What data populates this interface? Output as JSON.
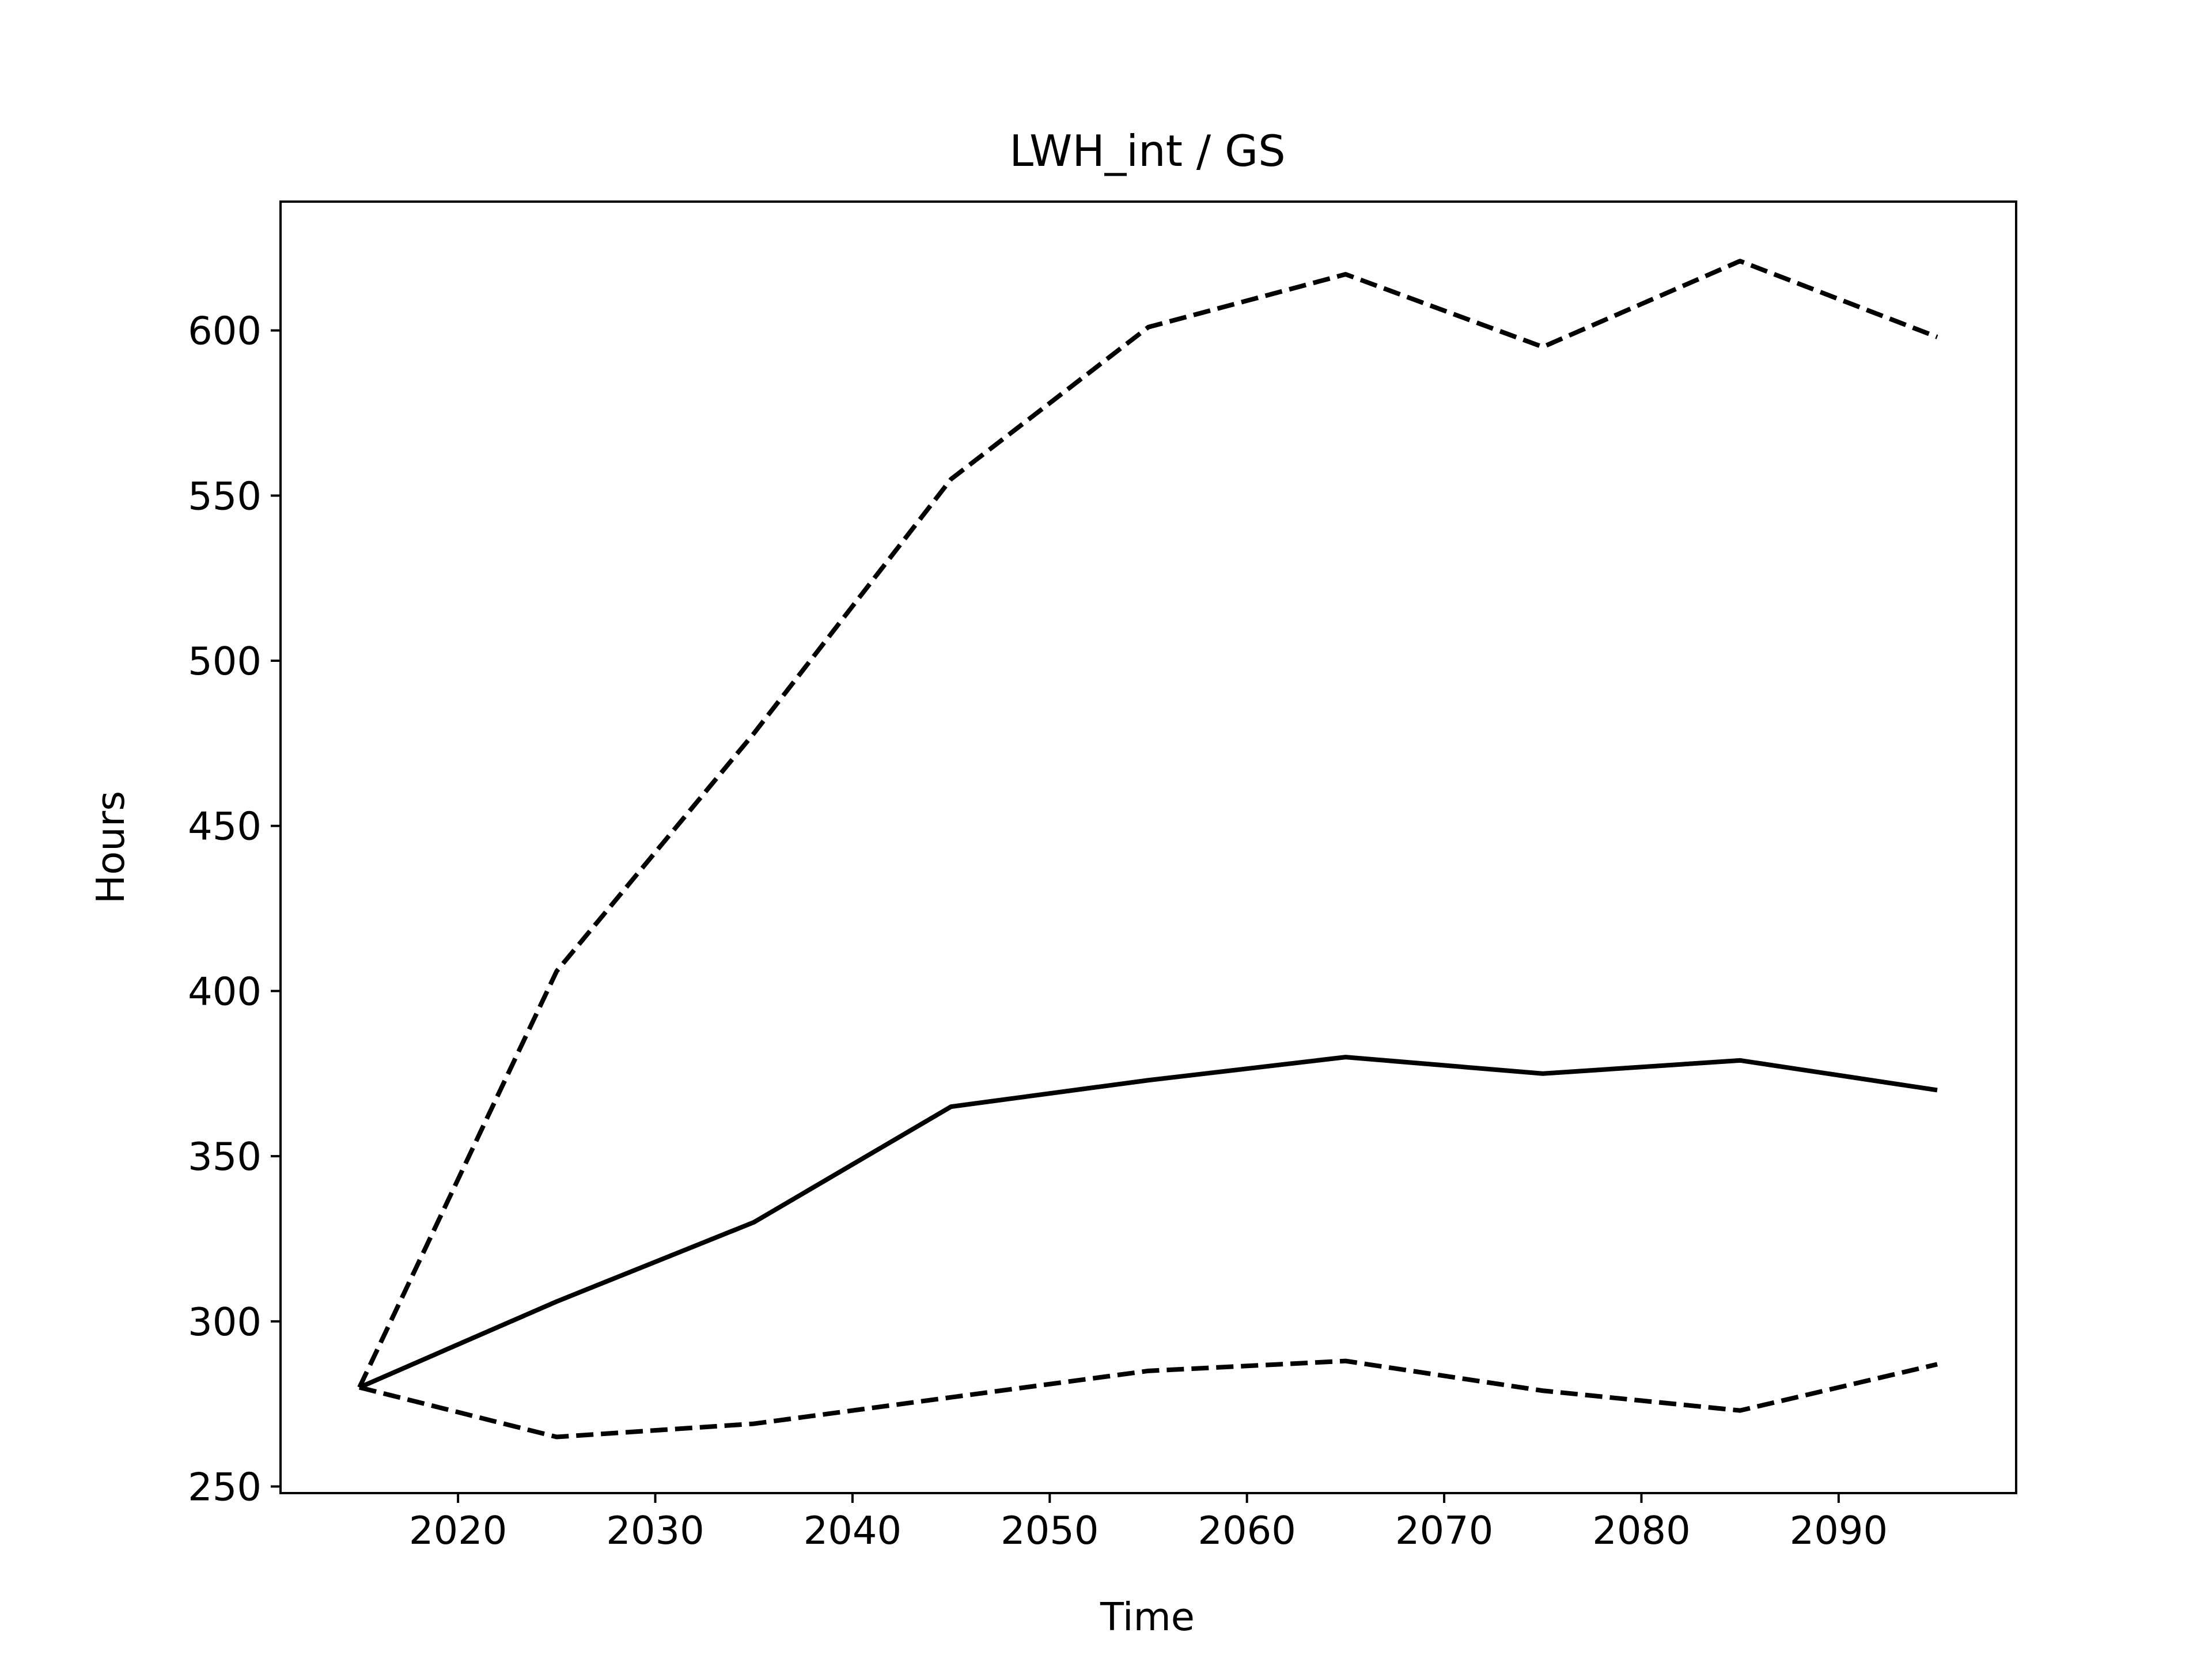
{
  "chart_data": {
    "type": "line",
    "title": "LWH_int / GS",
    "xlabel": "Time",
    "ylabel": "Hours",
    "xlim": [
      2011,
      2099
    ],
    "ylim": [
      248,
      639
    ],
    "xticks": [
      2020,
      2030,
      2040,
      2050,
      2060,
      2070,
      2080,
      2090
    ],
    "yticks": [
      250,
      300,
      350,
      400,
      450,
      500,
      550,
      600
    ],
    "grid": false,
    "x": [
      2015,
      2025,
      2035,
      2045,
      2055,
      2065,
      2075,
      2085,
      2095
    ],
    "series": [
      {
        "style": "solid",
        "color": "#000000",
        "values": [
          280,
          306,
          330,
          365,
          373,
          380,
          375,
          379,
          370
        ]
      },
      {
        "style": "dashed",
        "color": "#000000",
        "values": [
          280,
          406,
          478,
          555,
          601,
          617,
          595,
          621,
          598
        ]
      },
      {
        "style": "dashed",
        "color": "#000000",
        "values": [
          280,
          265,
          269,
          277,
          285,
          288,
          279,
          273,
          287
        ]
      }
    ]
  }
}
